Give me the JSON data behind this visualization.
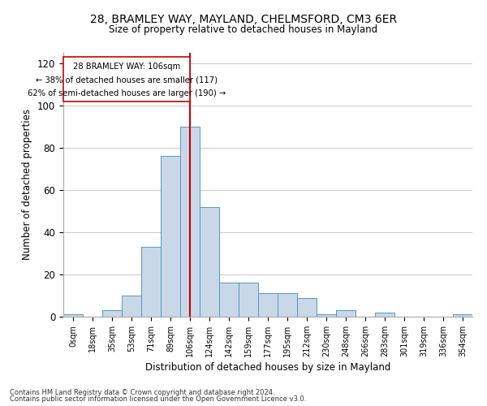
{
  "title_line1": "28, BRAMLEY WAY, MAYLAND, CHELMSFORD, CM3 6ER",
  "title_line2": "Size of property relative to detached houses in Mayland",
  "xlabel": "Distribution of detached houses by size in Mayland",
  "ylabel": "Number of detached properties",
  "bar_color": "#c8d8e8",
  "bar_edge_color": "#5599bb",
  "annotation_line_color": "#cc0000",
  "annotation_box_color": "#cc0000",
  "background_color": "#ffffff",
  "grid_color": "#cccccc",
  "categories": [
    "0sqm",
    "18sqm",
    "35sqm",
    "53sqm",
    "71sqm",
    "89sqm",
    "106sqm",
    "124sqm",
    "142sqm",
    "159sqm",
    "177sqm",
    "195sqm",
    "212sqm",
    "230sqm",
    "248sqm",
    "266sqm",
    "283sqm",
    "301sqm",
    "319sqm",
    "336sqm",
    "354sqm"
  ],
  "values": [
    1,
    0,
    3,
    10,
    33,
    76,
    90,
    52,
    16,
    16,
    11,
    11,
    9,
    1,
    3,
    0,
    2,
    0,
    0,
    0,
    1
  ],
  "annotation_text_line1": "28 BRAMLEY WAY: 106sqm",
  "annotation_text_line2": "← 38% of detached houses are smaller (117)",
  "annotation_text_line3": "62% of semi-detached houses are larger (190) →",
  "marker_index": 6,
  "ylim": [
    0,
    125
  ],
  "yticks": [
    0,
    20,
    40,
    60,
    80,
    100,
    120
  ],
  "footer_line1": "Contains HM Land Registry data © Crown copyright and database right 2024.",
  "footer_line2": "Contains public sector information licensed under the Open Government Licence v3.0."
}
